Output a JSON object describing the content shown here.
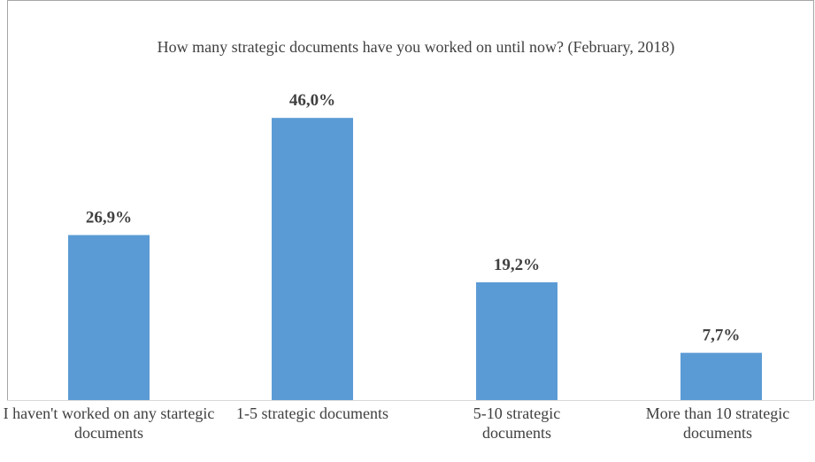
{
  "chart_data": {
    "type": "bar",
    "title": "How many strategic documents have you worked on until now? (February, 2018)",
    "categories": [
      "I haven't worked on any startegic documents",
      "1-5 strategic documents",
      "5-10 strategic documents",
      "More than 10 strategic documents"
    ],
    "values": [
      26.9,
      46.0,
      19.2,
      7.7
    ],
    "value_labels": [
      "26,9%",
      "46,0%",
      "19,2%",
      "7,7%"
    ],
    "color": "#5b9bd5"
  }
}
